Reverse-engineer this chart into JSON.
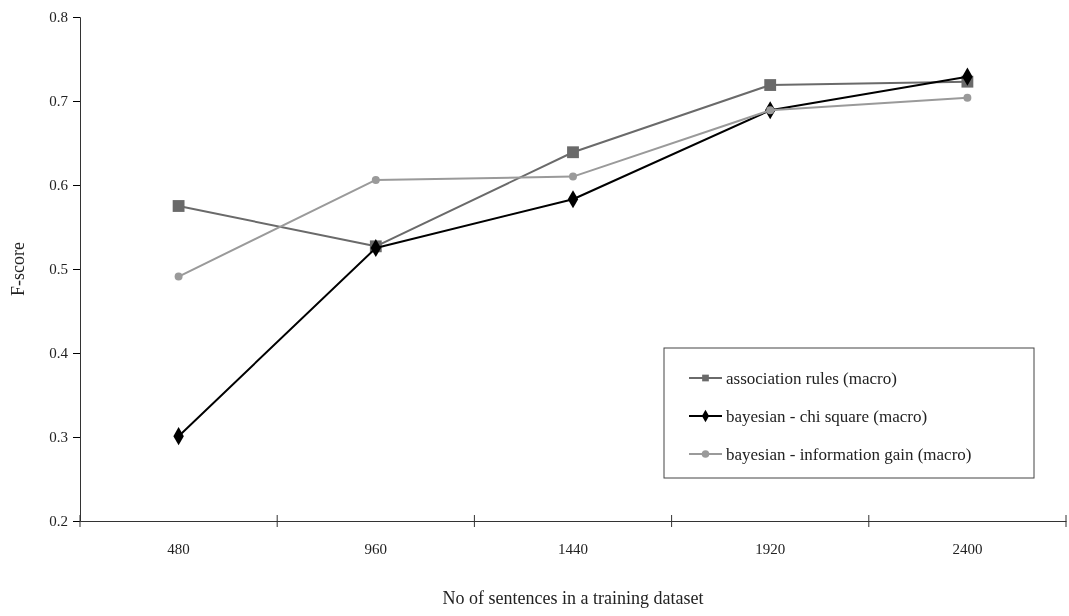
{
  "chart_data": {
    "type": "line",
    "xlabel": "No of sentences in a training dataset",
    "ylabel": "F-score",
    "categories": [
      "480",
      "960",
      "1440",
      "1920",
      "2400"
    ],
    "series": [
      {
        "name": "association rules (macro)",
        "color": "#6a6a6a",
        "marker": "square",
        "values": [
          0.575,
          0.527,
          0.639,
          0.719,
          0.723
        ]
      },
      {
        "name": "bayesian - chi square (macro)",
        "color": "#000000",
        "marker": "diamond",
        "values": [
          0.301,
          0.525,
          0.583,
          0.689,
          0.729
        ]
      },
      {
        "name": "bayesian - information gain (macro)",
        "color": "#9a9a9a",
        "marker": "circle",
        "values": [
          0.491,
          0.606,
          0.61,
          0.689,
          0.704
        ]
      }
    ],
    "ylim": [
      0.2,
      0.8
    ],
    "yticks": [
      0.2,
      0.3,
      0.4,
      0.5,
      0.6,
      0.7,
      0.8
    ],
    "grid": false,
    "legend": "bottom right",
    "line_style": "solid"
  }
}
